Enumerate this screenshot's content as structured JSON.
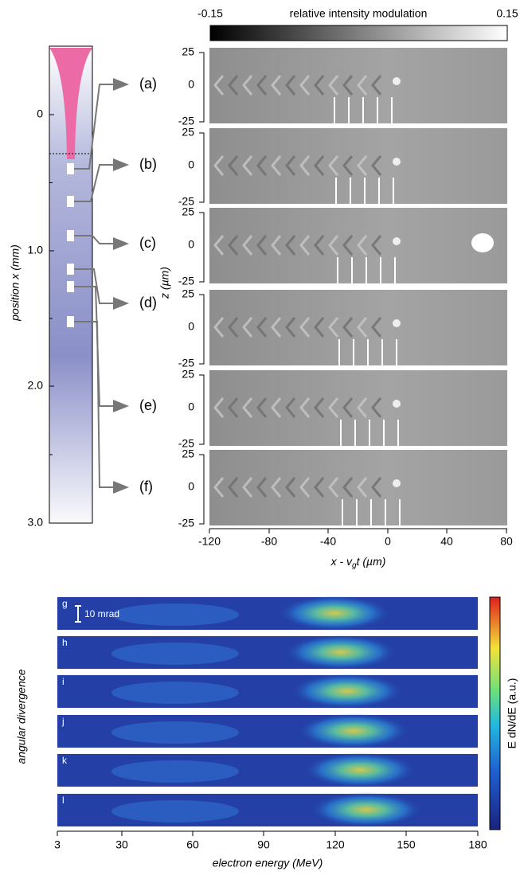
{
  "left_panel": {
    "axis_label": "position x (mm)",
    "ticks": [
      "0",
      "1.0",
      "2.0",
      "3.0"
    ],
    "markers": [
      "(a)",
      "(b)",
      "(c)",
      "(d)",
      "(e)",
      "(f)"
    ]
  },
  "top_panels": {
    "colorbar": {
      "min": "-0.15",
      "label": "relative intensity modulation",
      "max": "0.15"
    },
    "y_label": "z (µm)",
    "y_ticks": [
      "25",
      "0",
      "-25"
    ],
    "x_ticks": [
      "-120",
      "-80",
      "-40",
      "0",
      "40",
      "80"
    ],
    "x_label": [
      "x - v",
      "g",
      "t (µm)"
    ]
  },
  "bottom_panels": {
    "panel_labels": [
      "g",
      "h",
      "i",
      "j",
      "k",
      "l"
    ],
    "scale_label": "10 mrad",
    "x_ticks": [
      "3",
      "30",
      "60",
      "90",
      "120",
      "150",
      "180"
    ],
    "x_label": "electron energy (MeV)",
    "y_label": "angular divergence",
    "colorbar_label": "E dN/dE (a.u.)"
  }
}
